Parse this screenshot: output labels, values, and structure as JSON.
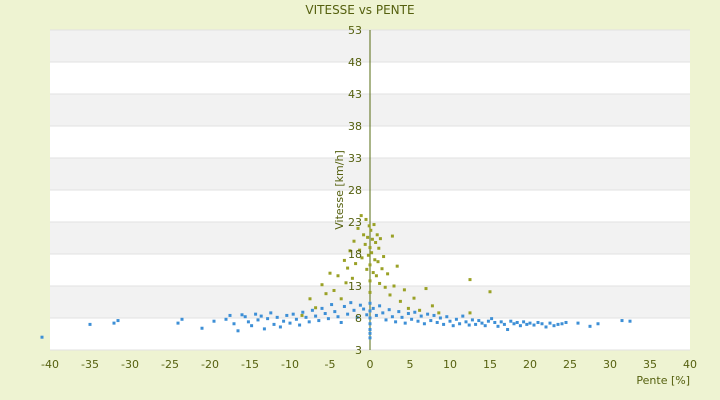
{
  "chart_data": {
    "type": "scatter",
    "title": "VITESSE vs PENTE",
    "xlabel": "Pente [%]",
    "ylabel": "Vitesse [km/h]",
    "xlim": [
      -40,
      40
    ],
    "ylim": [
      3,
      53
    ],
    "x_ticks": [
      -40,
      -35,
      -30,
      -25,
      -20,
      -15,
      -10,
      -5,
      0,
      5,
      10,
      15,
      20,
      25,
      30,
      35,
      40
    ],
    "y_ticks": [
      3,
      8,
      13,
      18,
      23,
      28,
      33,
      38,
      43,
      48,
      53
    ],
    "grid": true,
    "legend": "none",
    "colors": {
      "background": "#eef3d2",
      "plot_area": "#ffffff",
      "band": "#f2f2f2",
      "text": "#55600f",
      "axis": "#556b10",
      "series_low": "#3d8fd6",
      "series_high": "#9aa126"
    },
    "series": [
      {
        "color": "#3d8fd6",
        "points": [
          [
            -41,
            5
          ],
          [
            -35,
            7
          ],
          [
            -32,
            7.2
          ],
          [
            -31.5,
            7.6
          ],
          [
            -24,
            7.2
          ],
          [
            -23.5,
            7.8
          ],
          [
            -21,
            6.4
          ],
          [
            -19.5,
            7.5
          ],
          [
            -18,
            7.8
          ],
          [
            -17.5,
            8.4
          ],
          [
            -17,
            7.1
          ],
          [
            -16.5,
            6
          ],
          [
            -16,
            8.5
          ],
          [
            -15.6,
            8.2
          ],
          [
            -15.2,
            7.4
          ],
          [
            -14.8,
            6.8
          ],
          [
            -14.3,
            8.6
          ],
          [
            -14,
            7.7
          ],
          [
            -13.6,
            8.3
          ],
          [
            -13.2,
            6.3
          ],
          [
            -12.8,
            7.9
          ],
          [
            -12.4,
            8.8
          ],
          [
            -12,
            7
          ],
          [
            -11.6,
            8.1
          ],
          [
            -11.2,
            6.6
          ],
          [
            -10.8,
            7.5
          ],
          [
            -10.4,
            8.4
          ],
          [
            -10,
            7.2
          ],
          [
            -9.6,
            8.6
          ],
          [
            -9.2,
            7.8
          ],
          [
            -8.8,
            6.9
          ],
          [
            -8.4,
            8.9
          ],
          [
            -8,
            8.1
          ],
          [
            -7.6,
            7.4
          ],
          [
            -7.2,
            9.2
          ],
          [
            -6.8,
            8.3
          ],
          [
            -6.4,
            7.6
          ],
          [
            -6,
            9.5
          ],
          [
            -5.6,
            8.7
          ],
          [
            -5.2,
            7.9
          ],
          [
            -4.8,
            10.1
          ],
          [
            -4.4,
            9
          ],
          [
            -4,
            8.2
          ],
          [
            -3.6,
            7.3
          ],
          [
            -3.2,
            9.8
          ],
          [
            -2.8,
            8.6
          ],
          [
            -2.4,
            10.4
          ],
          [
            -2,
            9.2
          ],
          [
            -1.6,
            8.1
          ],
          [
            -1.2,
            10
          ],
          [
            -0.8,
            9.4
          ],
          [
            -0.4,
            8.5
          ],
          [
            0,
            10.3
          ],
          [
            0,
            9.1
          ],
          [
            0,
            8
          ],
          [
            0,
            7.1
          ],
          [
            0,
            6.2
          ],
          [
            0,
            5.6
          ],
          [
            0,
            4.9
          ],
          [
            0.4,
            9.5
          ],
          [
            0.8,
            8.4
          ],
          [
            1.2,
            9.9
          ],
          [
            1.6,
            8.8
          ],
          [
            2,
            7.7
          ],
          [
            2.4,
            9.3
          ],
          [
            2.8,
            8.2
          ],
          [
            3.2,
            7.4
          ],
          [
            3.6,
            9
          ],
          [
            4,
            8.1
          ],
          [
            4.4,
            7.2
          ],
          [
            4.8,
            8.7
          ],
          [
            5.2,
            7.8
          ],
          [
            5.6,
            8.9
          ],
          [
            6,
            7.5
          ],
          [
            6.4,
            8.3
          ],
          [
            6.8,
            7.1
          ],
          [
            7.2,
            8.6
          ],
          [
            7.6,
            7.6
          ],
          [
            8,
            8.4
          ],
          [
            8.4,
            7.3
          ],
          [
            8.8,
            8
          ],
          [
            9.2,
            7
          ],
          [
            9.6,
            8.2
          ],
          [
            10,
            7.5
          ],
          [
            10.4,
            6.8
          ],
          [
            10.8,
            7.8
          ],
          [
            11.2,
            7.1
          ],
          [
            11.6,
            8.3
          ],
          [
            12,
            7.4
          ],
          [
            12.4,
            6.9
          ],
          [
            12.8,
            7.7
          ],
          [
            13.2,
            7
          ],
          [
            13.6,
            7.6
          ],
          [
            14,
            7.2
          ],
          [
            14.4,
            6.8
          ],
          [
            14.8,
            7.5
          ],
          [
            15.2,
            7.9
          ],
          [
            15.6,
            7.3
          ],
          [
            16,
            6.7
          ],
          [
            16.4,
            7.4
          ],
          [
            16.8,
            7
          ],
          [
            17.2,
            6.2
          ],
          [
            17.6,
            7.5
          ],
          [
            18,
            7.1
          ],
          [
            18.4,
            7.3
          ],
          [
            18.8,
            6.8
          ],
          [
            19.2,
            7.4
          ],
          [
            19.6,
            7
          ],
          [
            20,
            7.2
          ],
          [
            20.5,
            6.9
          ],
          [
            21,
            7.3
          ],
          [
            21.5,
            7.1
          ],
          [
            22,
            6.6
          ],
          [
            22.5,
            7.2
          ],
          [
            23,
            6.8
          ],
          [
            23.5,
            7
          ],
          [
            24,
            7.1
          ],
          [
            24.5,
            7.3
          ],
          [
            26,
            7.2
          ],
          [
            27.5,
            6.7
          ],
          [
            28.5,
            7.1
          ],
          [
            31.5,
            7.6
          ],
          [
            32.5,
            7.5
          ]
        ]
      },
      {
        "color": "#9aa126",
        "points": [
          [
            -8.5,
            8.4
          ],
          [
            -7.5,
            11
          ],
          [
            -6.8,
            9.6
          ],
          [
            -6,
            13.2
          ],
          [
            -5.5,
            11.8
          ],
          [
            -5,
            15
          ],
          [
            -4.5,
            12.3
          ],
          [
            -4,
            14.6
          ],
          [
            -3.6,
            11
          ],
          [
            -3.2,
            17
          ],
          [
            -3,
            13.5
          ],
          [
            -2.8,
            15.8
          ],
          [
            -2.5,
            18.5
          ],
          [
            -2.2,
            14.2
          ],
          [
            -2,
            20
          ],
          [
            -1.8,
            16.5
          ],
          [
            -1.5,
            22
          ],
          [
            -1.3,
            18.6
          ],
          [
            -1.1,
            24
          ],
          [
            -1,
            17.4
          ],
          [
            -0.8,
            21
          ],
          [
            -0.6,
            19.5
          ],
          [
            -0.5,
            23.4
          ],
          [
            -0.4,
            15.6
          ],
          [
            -0.3,
            20.6
          ],
          [
            -0.2,
            17.8
          ],
          [
            -0.1,
            22.4
          ],
          [
            0,
            19
          ],
          [
            0,
            16.3
          ],
          [
            0,
            13.8
          ],
          [
            0,
            12
          ],
          [
            0.1,
            21.7
          ],
          [
            0.2,
            18.2
          ],
          [
            0.3,
            20.3
          ],
          [
            0.4,
            15.1
          ],
          [
            0.5,
            22.6
          ],
          [
            0.6,
            17.1
          ],
          [
            0.7,
            19.8
          ],
          [
            0.8,
            14.6
          ],
          [
            0.9,
            21
          ],
          [
            1,
            16.8
          ],
          [
            1.1,
            18.9
          ],
          [
            1.2,
            13.4
          ],
          [
            1.3,
            20.4
          ],
          [
            1.5,
            15.7
          ],
          [
            1.7,
            17.6
          ],
          [
            1.9,
            12.8
          ],
          [
            2.2,
            14.9
          ],
          [
            2.5,
            11.6
          ],
          [
            2.8,
            20.8
          ],
          [
            3,
            13
          ],
          [
            3.4,
            16.1
          ],
          [
            3.8,
            10.6
          ],
          [
            4.3,
            12.4
          ],
          [
            4.8,
            9.5
          ],
          [
            5.5,
            11.1
          ],
          [
            6.2,
            9.2
          ],
          [
            7,
            12.6
          ],
          [
            7.8,
            9.9
          ],
          [
            8.6,
            8.8
          ],
          [
            12.5,
            14
          ],
          [
            12.5,
            8.8
          ],
          [
            15,
            12.1
          ]
        ]
      }
    ]
  }
}
